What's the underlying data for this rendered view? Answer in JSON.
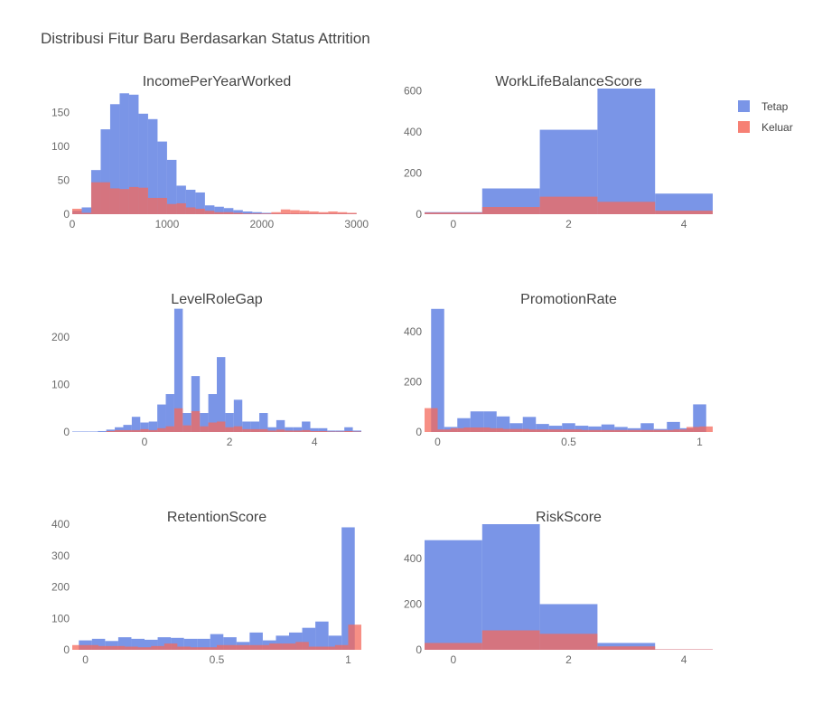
{
  "title": "Distribusi Fitur Baru Berdasarkan Status Attrition",
  "colors": {
    "tetap": "#6382e3",
    "keluar": "#f46a5c",
    "text": "#444444",
    "axis": "#6b6b6b"
  },
  "legend": {
    "items": [
      {
        "label": "Tetap",
        "color": "#6382e3"
      },
      {
        "label": "Keluar",
        "color": "#f46a5c"
      }
    ]
  },
  "chart_data": [
    {
      "type": "bar",
      "title": "IncomePerYearWorked",
      "xlim": [
        0,
        3050
      ],
      "ylim": [
        0,
        185
      ],
      "xticks": [
        0,
        1000,
        2000,
        3000
      ],
      "xtick_labels": [
        "0",
        "1000",
        "2000",
        "3000"
      ],
      "yticks": [
        0,
        50,
        100,
        150
      ],
      "ytick_labels": [
        "0",
        "50",
        "100",
        "150"
      ],
      "series": [
        {
          "name": "Tetap",
          "bin_start": 0,
          "bin_width": 100,
          "values": [
            5,
            10,
            65,
            125,
            162,
            178,
            176,
            148,
            140,
            107,
            80,
            42,
            36,
            32,
            13,
            11,
            9,
            6,
            4,
            3,
            2,
            1,
            1,
            1,
            1,
            1,
            1,
            1,
            1,
            1
          ]
        },
        {
          "name": "Keluar",
          "bin_start": 0,
          "bin_width": 100,
          "values": [
            8,
            2,
            47,
            47,
            38,
            37,
            40,
            39,
            24,
            24,
            15,
            16,
            10,
            8,
            5,
            3,
            3,
            2,
            1,
            1,
            1,
            3,
            7,
            6,
            5,
            4,
            3,
            4,
            3,
            2
          ]
        }
      ]
    },
    {
      "type": "bar",
      "title": "WorkLifeBalanceScore",
      "xlim": [
        -0.5,
        4.5
      ],
      "ylim": [
        0,
        610
      ],
      "xticks": [
        0,
        2,
        4
      ],
      "xtick_labels": [
        "0",
        "2",
        "4"
      ],
      "yticks": [
        0,
        200,
        400,
        600
      ],
      "ytick_labels": [
        "0",
        "200",
        "400",
        "600"
      ],
      "series": [
        {
          "name": "Tetap",
          "bin_start": -0.5,
          "bin_width": 1,
          "values": [
            10,
            125,
            410,
            610,
            100
          ]
        },
        {
          "name": "Keluar",
          "bin_start": -0.5,
          "bin_width": 1,
          "values": [
            8,
            35,
            85,
            60,
            17
          ]
        }
      ]
    },
    {
      "type": "bar",
      "title": "LevelRoleGap",
      "xlim": [
        -1.7,
        5.1
      ],
      "ylim": [
        0,
        265
      ],
      "xticks": [
        0,
        2,
        4
      ],
      "xtick_labels": [
        "0",
        "2",
        "4"
      ],
      "yticks": [
        0,
        100,
        200
      ],
      "ytick_labels": [
        "0",
        "100",
        "200"
      ],
      "series": [
        {
          "name": "Tetap",
          "bin_start": -1.7,
          "bin_width": 0.2,
          "values": [
            1,
            1,
            1,
            2,
            5,
            10,
            15,
            32,
            20,
            22,
            58,
            80,
            260,
            40,
            118,
            40,
            80,
            158,
            40,
            68,
            22,
            22,
            40,
            10,
            25,
            10,
            10,
            22,
            8,
            8,
            3,
            3,
            10,
            3,
            10
          ]
        },
        {
          "name": "Keluar",
          "bin_start": -1.7,
          "bin_width": 0.2,
          "values": [
            0,
            0,
            0,
            0,
            2,
            4,
            4,
            4,
            6,
            4,
            8,
            12,
            50,
            14,
            44,
            12,
            20,
            22,
            10,
            12,
            6,
            6,
            6,
            3,
            5,
            3,
            3,
            4,
            2,
            2,
            1,
            1,
            2,
            1,
            2
          ]
        }
      ]
    },
    {
      "type": "bar",
      "title": "PromotionRate",
      "xlim": [
        -0.05,
        1.05
      ],
      "ylim": [
        0,
        500
      ],
      "xticks": [
        0,
        0.5,
        1
      ],
      "xtick_labels": [
        "0",
        "0.5",
        "1"
      ],
      "yticks": [
        0,
        200,
        400
      ],
      "ytick_labels": [
        "0",
        "200",
        "400"
      ],
      "series": [
        {
          "name": "Tetap",
          "bin_start": -0.025,
          "bin_width": 0.05,
          "values": [
            490,
            20,
            55,
            82,
            82,
            62,
            35,
            60,
            32,
            25,
            35,
            25,
            22,
            30,
            20,
            15,
            35,
            12,
            40,
            15,
            110
          ]
        },
        {
          "name": "Keluar",
          "bin_start": -0.05,
          "bin_width": 0.05,
          "values": [
            95,
            10,
            15,
            18,
            18,
            15,
            12,
            12,
            10,
            10,
            10,
            10,
            8,
            8,
            8,
            8,
            8,
            8,
            8,
            10,
            20,
            22
          ]
        }
      ]
    },
    {
      "type": "bar",
      "title": "RetentionScore",
      "xlim": [
        -0.05,
        1.05
      ],
      "ylim": [
        0,
        400
      ],
      "xticks": [
        0,
        0.5,
        1
      ],
      "xtick_labels": [
        "0",
        "0.5",
        "1"
      ],
      "yticks": [
        0,
        100,
        200,
        300,
        400
      ],
      "ytick_labels": [
        "0",
        "100",
        "200",
        "300",
        "400"
      ],
      "series": [
        {
          "name": "Tetap",
          "bin_start": -0.025,
          "bin_width": 0.05,
          "values": [
            30,
            35,
            28,
            40,
            35,
            32,
            40,
            38,
            35,
            35,
            50,
            40,
            25,
            55,
            30,
            45,
            55,
            70,
            90,
            45,
            390
          ]
        },
        {
          "name": "Keluar",
          "bin_start": -0.05,
          "bin_width": 0.05,
          "values": [
            15,
            15,
            12,
            12,
            10,
            8,
            12,
            20,
            10,
            8,
            8,
            15,
            15,
            15,
            15,
            20,
            20,
            25,
            10,
            10,
            15,
            80
          ]
        }
      ]
    },
    {
      "type": "bar",
      "title": "RiskScore",
      "xlim": [
        -0.5,
        4.5
      ],
      "ylim": [
        0,
        550
      ],
      "xticks": [
        0,
        2,
        4
      ],
      "xtick_labels": [
        "0",
        "2",
        "4"
      ],
      "yticks": [
        0,
        200,
        400
      ],
      "ytick_labels": [
        "0",
        "200",
        "400"
      ],
      "series": [
        {
          "name": "Tetap",
          "bin_start": -0.5,
          "bin_width": 1,
          "values": [
            480,
            550,
            200,
            30,
            2
          ]
        },
        {
          "name": "Keluar",
          "bin_start": -0.5,
          "bin_width": 1,
          "values": [
            30,
            85,
            70,
            15,
            2
          ]
        }
      ]
    }
  ]
}
